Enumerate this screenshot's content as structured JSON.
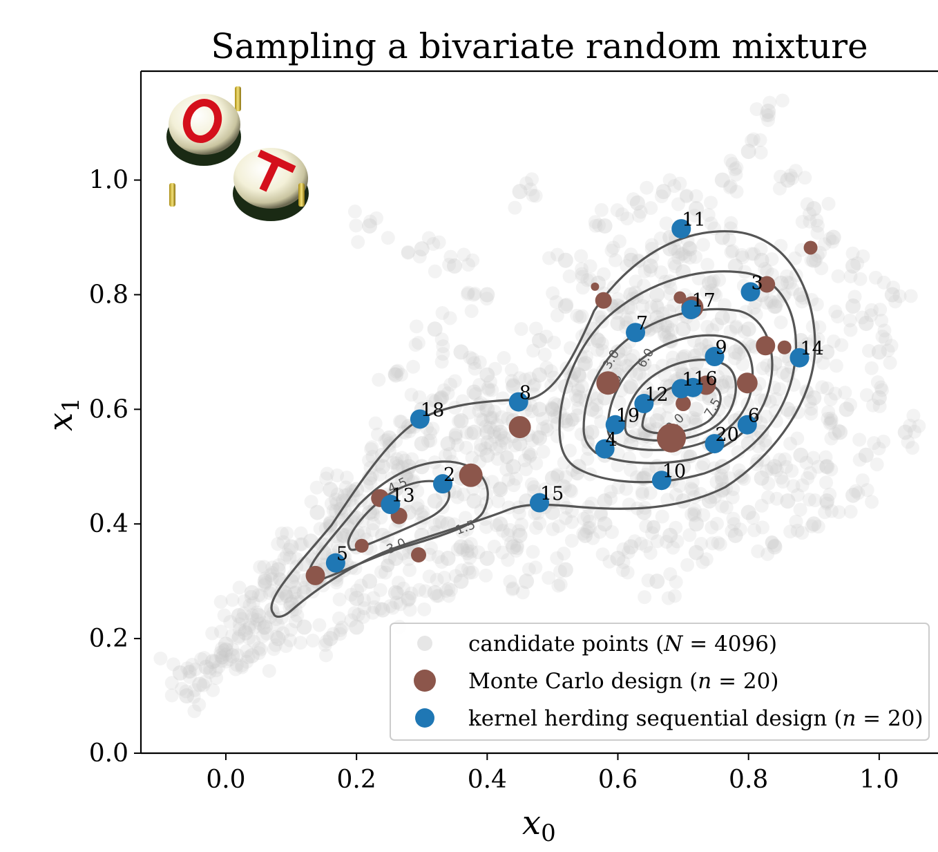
{
  "chart_data": {
    "type": "scatter",
    "title": "Sampling a bivariate random mixture",
    "xlabel": "x",
    "xlabel_sub": "0",
    "ylabel": "x",
    "ylabel_sub": "1",
    "xlim": [
      -0.13,
      1.09
    ],
    "ylim": [
      0.0,
      1.19
    ],
    "xticks": [
      "0.0",
      "0.2",
      "0.4",
      "0.6",
      "0.8",
      "1.0"
    ],
    "xtick_values": [
      0.0,
      0.2,
      0.4,
      0.6,
      0.8,
      1.0
    ],
    "yticks": [
      "0.0",
      "0.2",
      "0.4",
      "0.6",
      "0.8",
      "1.0"
    ],
    "ytick_values": [
      0.0,
      0.2,
      0.4,
      0.6,
      0.8,
      1.0
    ],
    "grid": false,
    "legend_position": "lower-right",
    "logo": "OT",
    "colors": {
      "candidate": "#c8c8c8",
      "monte_carlo": "#8c564b",
      "kernel_herding": "#1f77b4",
      "contour": "#555555"
    },
    "contour_levels": [
      "1.5",
      "3.0",
      "4.5",
      "6.0",
      "7.5",
      "9.0"
    ],
    "series": [
      {
        "name": "candidate points",
        "legend_label": "candidate points (N = 4096)",
        "N": 4096,
        "sample_points": [
          [
            -0.07,
            0.14
          ],
          [
            -0.06,
            0.1
          ],
          [
            -0.04,
            0.12
          ],
          [
            -0.02,
            0.16
          ],
          [
            0.0,
            0.18
          ],
          [
            0.01,
            0.17
          ],
          [
            0.03,
            0.21
          ],
          [
            0.05,
            0.24
          ],
          [
            0.07,
            0.25
          ],
          [
            0.09,
            0.28
          ],
          [
            0.1,
            0.3
          ],
          [
            0.12,
            0.33
          ],
          [
            0.13,
            0.37
          ],
          [
            0.15,
            0.35
          ],
          [
            0.16,
            0.4
          ],
          [
            0.18,
            0.44
          ],
          [
            0.2,
            0.41
          ],
          [
            0.22,
            0.48
          ],
          [
            0.24,
            0.52
          ],
          [
            0.25,
            0.55
          ],
          [
            0.28,
            0.57
          ],
          [
            0.3,
            0.6
          ],
          [
            0.33,
            0.62
          ],
          [
            0.36,
            0.58
          ],
          [
            0.38,
            0.63
          ],
          [
            0.4,
            0.6
          ],
          [
            0.42,
            0.56
          ],
          [
            0.45,
            0.54
          ],
          [
            0.48,
            0.55
          ],
          [
            0.5,
            0.6
          ],
          [
            0.52,
            0.64
          ],
          [
            0.55,
            0.68
          ],
          [
            0.57,
            0.72
          ],
          [
            0.6,
            0.75
          ],
          [
            0.62,
            0.8
          ],
          [
            0.65,
            0.85
          ],
          [
            0.68,
            0.9
          ],
          [
            0.72,
            0.95
          ],
          [
            0.76,
            1.0
          ],
          [
            0.8,
            1.05
          ],
          [
            0.83,
            1.12
          ],
          [
            0.86,
            1.0
          ],
          [
            0.9,
            0.95
          ],
          [
            0.93,
            0.9
          ],
          [
            0.96,
            0.85
          ],
          [
            0.98,
            0.75
          ],
          [
            1.0,
            0.7
          ],
          [
            1.04,
            0.56
          ],
          [
            0.96,
            0.45
          ],
          [
            0.9,
            0.4
          ],
          [
            0.84,
            0.36
          ],
          [
            0.78,
            0.38
          ],
          [
            0.72,
            0.35
          ],
          [
            0.66,
            0.3
          ],
          [
            0.6,
            0.34
          ],
          [
            0.55,
            0.38
          ],
          [
            0.5,
            0.42
          ],
          [
            0.45,
            0.38
          ],
          [
            0.4,
            0.34
          ],
          [
            0.36,
            0.3
          ],
          [
            0.32,
            0.28
          ],
          [
            0.28,
            0.27
          ],
          [
            0.24,
            0.25
          ],
          [
            0.2,
            0.22
          ],
          [
            0.16,
            0.2
          ],
          [
            0.12,
            0.22
          ],
          [
            0.08,
            0.2
          ],
          [
            0.04,
            0.17
          ],
          [
            0.22,
            0.92
          ],
          [
            0.3,
            0.88
          ],
          [
            0.35,
            0.85
          ],
          [
            0.4,
            0.8
          ],
          [
            0.45,
            0.98
          ],
          [
            0.32,
            0.74
          ],
          [
            0.26,
            0.66
          ],
          [
            0.36,
            0.7
          ],
          [
            0.48,
            0.72
          ],
          [
            0.52,
            0.86
          ],
          [
            0.58,
            0.92
          ],
          [
            0.63,
            0.96
          ],
          [
            0.67,
            0.98
          ],
          [
            0.71,
            0.88
          ],
          [
            0.78,
            0.85
          ],
          [
            0.85,
            0.82
          ],
          [
            0.92,
            0.7
          ],
          [
            0.95,
            0.6
          ],
          [
            0.88,
            0.52
          ],
          [
            0.82,
            0.48
          ],
          [
            0.76,
            0.46
          ],
          [
            0.7,
            0.44
          ],
          [
            0.64,
            0.48
          ],
          [
            0.58,
            0.52
          ],
          [
            0.62,
            0.58
          ],
          [
            0.66,
            0.62
          ],
          [
            0.7,
            0.66
          ],
          [
            0.74,
            0.7
          ],
          [
            0.68,
            0.72
          ],
          [
            0.64,
            0.68
          ],
          [
            0.72,
            0.6
          ],
          [
            0.76,
            0.64
          ],
          [
            0.78,
            0.58
          ],
          [
            0.74,
            0.54
          ],
          [
            0.68,
            0.56
          ],
          [
            0.62,
            0.64
          ],
          [
            0.6,
            0.7
          ],
          [
            0.66,
            0.76
          ],
          [
            0.72,
            0.78
          ],
          [
            0.8,
            0.74
          ],
          [
            0.84,
            0.68
          ],
          [
            0.86,
            0.6
          ],
          [
            0.8,
            0.54
          ],
          [
            0.56,
            0.6
          ],
          [
            0.54,
            0.5
          ],
          [
            0.5,
            0.48
          ],
          [
            0.44,
            0.5
          ],
          [
            0.4,
            0.52
          ],
          [
            0.36,
            0.48
          ],
          [
            0.32,
            0.44
          ],
          [
            0.28,
            0.42
          ],
          [
            0.24,
            0.38
          ],
          [
            0.2,
            0.36
          ],
          [
            0.18,
            0.32
          ],
          [
            0.22,
            0.3
          ],
          [
            0.26,
            0.34
          ],
          [
            0.3,
            0.38
          ],
          [
            0.34,
            0.4
          ],
          [
            0.38,
            0.44
          ],
          [
            0.42,
            0.46
          ],
          [
            0.46,
            0.44
          ],
          [
            0.3,
            0.5
          ],
          [
            0.26,
            0.46
          ],
          [
            0.22,
            0.42
          ],
          [
            0.18,
            0.38
          ],
          [
            0.14,
            0.3
          ],
          [
            0.1,
            0.26
          ],
          [
            0.06,
            0.22
          ],
          [
            0.0,
            0.19
          ],
          [
            -0.03,
            0.15
          ],
          [
            0.12,
            0.28
          ],
          [
            0.15,
            0.32
          ],
          [
            0.2,
            0.27
          ],
          [
            0.26,
            0.28
          ],
          [
            0.34,
            0.34
          ],
          [
            0.42,
            0.4
          ],
          [
            0.5,
            0.44
          ],
          [
            0.58,
            0.44
          ],
          [
            0.64,
            0.42
          ],
          [
            0.72,
            0.4
          ],
          [
            0.8,
            0.42
          ],
          [
            0.86,
            0.44
          ],
          [
            0.92,
            0.5
          ],
          [
            0.94,
            0.56
          ],
          [
            0.9,
            0.62
          ],
          [
            0.88,
            0.72
          ],
          [
            0.84,
            0.78
          ],
          [
            0.82,
            0.86
          ],
          [
            0.76,
            0.9
          ],
          [
            0.7,
            0.84
          ],
          [
            0.66,
            0.8
          ],
          [
            0.6,
            0.78
          ],
          [
            0.56,
            0.74
          ],
          [
            0.54,
            0.66
          ],
          [
            0.58,
            0.62
          ],
          [
            0.62,
            0.54
          ],
          [
            0.66,
            0.5
          ],
          [
            0.7,
            0.5
          ],
          [
            0.76,
            0.5
          ],
          [
            0.82,
            0.56
          ],
          [
            0.86,
            0.66
          ],
          [
            0.8,
            0.64
          ],
          [
            0.76,
            0.76
          ],
          [
            0.7,
            0.74
          ],
          [
            0.64,
            0.74
          ],
          [
            0.6,
            0.66
          ],
          [
            0.68,
            0.64
          ],
          [
            0.72,
            0.68
          ],
          [
            0.74,
            0.62
          ],
          [
            0.7,
            0.58
          ],
          [
            0.66,
            0.58
          ],
          [
            0.78,
            0.7
          ],
          [
            0.82,
            0.8
          ],
          [
            0.88,
            0.8
          ],
          [
            0.9,
            0.86
          ],
          [
            0.96,
            0.78
          ],
          [
            1.0,
            0.62
          ],
          [
            1.02,
            0.8
          ],
          [
            0.74,
            0.82
          ],
          [
            0.68,
            0.88
          ],
          [
            0.62,
            0.86
          ],
          [
            0.57,
            0.82
          ],
          [
            0.52,
            0.78
          ],
          [
            0.48,
            0.66
          ],
          [
            0.44,
            0.64
          ],
          [
            0.4,
            0.66
          ],
          [
            0.38,
            0.56
          ],
          [
            0.34,
            0.54
          ],
          [
            0.3,
            0.54
          ],
          [
            0.28,
            0.5
          ],
          [
            0.24,
            0.5
          ],
          [
            0.2,
            0.46
          ],
          [
            0.16,
            0.46
          ],
          [
            0.14,
            0.42
          ],
          [
            0.1,
            0.36
          ],
          [
            0.08,
            0.32
          ],
          [
            0.04,
            0.28
          ],
          [
            0.02,
            0.24
          ],
          [
            0.06,
            0.3
          ],
          [
            0.36,
            0.36
          ],
          [
            0.44,
            0.36
          ],
          [
            0.52,
            0.32
          ],
          [
            0.46,
            0.3
          ],
          [
            0.58,
            0.4
          ],
          [
            0.62,
            0.36
          ],
          [
            0.68,
            0.38
          ],
          [
            0.74,
            0.44
          ],
          [
            0.84,
            0.5
          ],
          [
            0.92,
            0.44
          ],
          [
            0.98,
            0.52
          ],
          [
            0.56,
            0.56
          ],
          [
            0.52,
            0.58
          ],
          [
            0.48,
            0.6
          ],
          [
            0.44,
            0.58
          ],
          [
            0.4,
            0.56
          ]
        ]
      },
      {
        "name": "Monte Carlo design",
        "legend_label": "Monte Carlo design (n = 20)",
        "n": 20,
        "points": [
          [
            0.895,
            0.882
          ],
          [
            0.828,
            0.818
          ],
          [
            0.565,
            0.814
          ],
          [
            0.578,
            0.79
          ],
          [
            0.695,
            0.795
          ],
          [
            0.714,
            0.778
          ],
          [
            0.826,
            0.711
          ],
          [
            0.855,
            0.708
          ],
          [
            0.585,
            0.646
          ],
          [
            0.735,
            0.642
          ],
          [
            0.798,
            0.646
          ],
          [
            0.45,
            0.569
          ],
          [
            0.682,
            0.55
          ],
          [
            0.375,
            0.485
          ],
          [
            0.236,
            0.445
          ],
          [
            0.265,
            0.414
          ],
          [
            0.208,
            0.362
          ],
          [
            0.295,
            0.346
          ],
          [
            0.137,
            0.31
          ],
          [
            0.7,
            0.61
          ]
        ],
        "sizes": [
          12,
          16,
          4,
          16,
          10,
          24,
          20,
          12,
          26,
          20,
          22,
          24,
          34,
          26,
          18,
          16,
          12,
          14,
          20,
          14
        ]
      },
      {
        "name": "kernel herding sequential design",
        "legend_label": "kernel herding sequential design (n = 20)",
        "n": 20,
        "points": [
          {
            "label": "1",
            "x": 0.697,
            "y": 0.636
          },
          {
            "label": "2",
            "x": 0.332,
            "y": 0.47
          },
          {
            "label": "3",
            "x": 0.803,
            "y": 0.805
          },
          {
            "label": "4",
            "x": 0.58,
            "y": 0.531
          },
          {
            "label": "5",
            "x": 0.168,
            "y": 0.332
          },
          {
            "label": "6",
            "x": 0.798,
            "y": 0.573
          },
          {
            "label": "7",
            "x": 0.627,
            "y": 0.734
          },
          {
            "label": "8",
            "x": 0.448,
            "y": 0.613
          },
          {
            "label": "9",
            "x": 0.748,
            "y": 0.692
          },
          {
            "label": "10",
            "x": 0.667,
            "y": 0.476
          },
          {
            "label": "11",
            "x": 0.697,
            "y": 0.915
          },
          {
            "label": "12",
            "x": 0.64,
            "y": 0.61
          },
          {
            "label": "13",
            "x": 0.252,
            "y": 0.434
          },
          {
            "label": "14",
            "x": 0.878,
            "y": 0.69
          },
          {
            "label": "15",
            "x": 0.48,
            "y": 0.437
          },
          {
            "label": "16",
            "x": 0.715,
            "y": 0.638
          },
          {
            "label": "17",
            "x": 0.712,
            "y": 0.774
          },
          {
            "label": "18",
            "x": 0.297,
            "y": 0.583
          },
          {
            "label": "19",
            "x": 0.596,
            "y": 0.573
          },
          {
            "label": "20",
            "x": 0.748,
            "y": 0.54
          }
        ]
      }
    ],
    "legend": {
      "candidate_prefix": "candidate points (",
      "candidate_var": "N",
      "candidate_suffix": " = 4096)",
      "mc_prefix": "Monte Carlo design (",
      "mc_var": "n",
      "mc_suffix": " = 20)",
      "kh_prefix": "kernel herding sequential design (",
      "kh_var": "n",
      "kh_suffix": " = 20)"
    }
  }
}
